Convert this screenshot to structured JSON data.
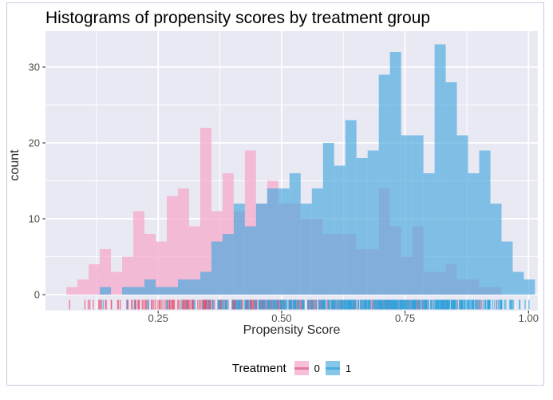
{
  "frame": {
    "border_color": "#C5CBE5",
    "background": "#FFFFFF"
  },
  "chart_data": {
    "type": "histogram",
    "title": "Histograms of propensity scores by treatment group",
    "xlabel": "Propensity Score",
    "ylabel": "count",
    "x_ticks": [
      0.25,
      0.5,
      0.75,
      1.0
    ],
    "x_tick_labels": [
      "0.25",
      "0.50",
      "0.75",
      "1.00"
    ],
    "y_ticks": [
      0,
      10,
      20,
      30
    ],
    "y_tick_labels": [
      "0",
      "10",
      "20",
      "30"
    ],
    "xlim": [
      0.022,
      1.019
    ],
    "ylim": [
      -1.9,
      34.9
    ],
    "grid": true,
    "legend_position": "bottom",
    "panel_background": "#E9E9F4",
    "gridline_color": "#FFFFFF",
    "bin_start": 0.064,
    "bin_width": 0.0226,
    "rug_seed": 7,
    "series": [
      {
        "name": "0",
        "fill": "rgba(245,170,204,0.75)",
        "rug_color": "rgba(229,78,112,0.6)",
        "counts": [
          1,
          2,
          4,
          6,
          3,
          5,
          11,
          8,
          7,
          13,
          14,
          9,
          22,
          11,
          16,
          11,
          19,
          12,
          15,
          12,
          12,
          10,
          10,
          8,
          8,
          8,
          6,
          6,
          14,
          9,
          5,
          9,
          3,
          3,
          4,
          2,
          2,
          1,
          1,
          0,
          0,
          0
        ]
      },
      {
        "name": "1",
        "fill": "rgba(72,169,221,0.66)",
        "rug_color": "rgba(47,163,220,0.6)",
        "counts": [
          0,
          0,
          0,
          1,
          0,
          1,
          1,
          2,
          1,
          1,
          2,
          2,
          3,
          7,
          8,
          12,
          9,
          12,
          14,
          14,
          16,
          12,
          14,
          20,
          17,
          23,
          18,
          19,
          29,
          32,
          21,
          21,
          16,
          33,
          28,
          21,
          16,
          19,
          12,
          7,
          3,
          2
        ]
      }
    ]
  },
  "axis": {
    "tick_color": "#333333",
    "tick_label_color": "#4D4D4D",
    "title_color": "#2B2B2B"
  },
  "legend": {
    "title": "Treatment",
    "items": [
      {
        "label": "0",
        "swatch_fill": "rgba(245,170,204,0.75)",
        "key_line_color": "#E2799E"
      },
      {
        "label": "1",
        "swatch_fill": "rgba(72,169,221,0.66)",
        "key_line_color": "#4FAEDC"
      }
    ]
  }
}
